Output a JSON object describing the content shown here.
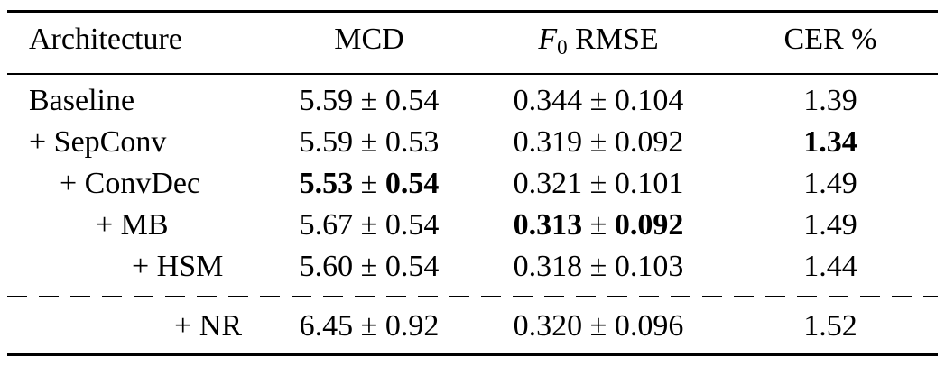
{
  "table": {
    "headers": {
      "architecture": "Architecture",
      "mcd": "MCD",
      "f0_symbol": "F",
      "f0_subscript": "0",
      "f0_label": " RMSE",
      "cer": "CER %"
    },
    "pm": " ± ",
    "rows": [
      {
        "architecture": "Baseline",
        "mcd_mean": "5.59",
        "mcd_std": "0.54",
        "f0_mean": "0.344",
        "f0_std": "0.104",
        "cer": "1.39"
      },
      {
        "architecture": "+ SepConv",
        "mcd_mean": "5.59",
        "mcd_std": "0.53",
        "f0_mean": "0.319",
        "f0_std": "0.092",
        "cer": "1.34"
      },
      {
        "architecture": "+ ConvDec",
        "mcd_mean": "5.53",
        "mcd_std": "0.54",
        "f0_mean": "0.321",
        "f0_std": "0.101",
        "cer": "1.49"
      },
      {
        "architecture": "+ MB",
        "mcd_mean": "5.67",
        "mcd_std": "0.54",
        "f0_mean": "0.313",
        "f0_std": "0.092",
        "cer": "1.49"
      },
      {
        "architecture": "+ HSM",
        "mcd_mean": "5.60",
        "mcd_std": "0.54",
        "f0_mean": "0.318",
        "f0_std": "0.103",
        "cer": "1.44"
      },
      {
        "architecture": "+ NR",
        "mcd_mean": "6.45",
        "mcd_std": "0.92",
        "f0_mean": "0.320",
        "f0_std": "0.096",
        "cer": "1.52"
      }
    ]
  }
}
